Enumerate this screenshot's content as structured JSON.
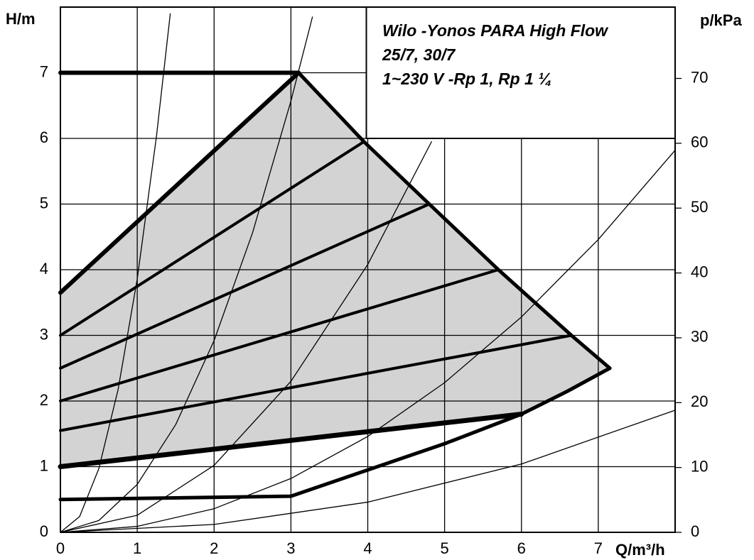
{
  "chart_data": {
    "type": "line",
    "title": [
      "Wilo -Yonos PARA High Flow",
      "25/7, 30/7",
      "1~230 V -Rp 1, Rp 1 ¼"
    ],
    "y_label": "H/m",
    "y2_label": "p/kPa",
    "x_label": "Q/m³/h",
    "xlim": [
      0,
      8
    ],
    "xticks": [
      0,
      1,
      2,
      3,
      4,
      5,
      6,
      7
    ],
    "ylim": [
      0,
      8
    ],
    "yticks": [
      0,
      1,
      2,
      3,
      4,
      5,
      6,
      7
    ],
    "y2lim": [
      0,
      81
    ],
    "y2ticks": [
      0,
      10,
      20,
      30,
      40,
      50,
      60,
      70
    ],
    "grid": true,
    "fill": "#d3d3d3",
    "color": "#000000",
    "series": [
      {
        "role": "max",
        "linewidth": 6,
        "x": [
          0,
          3.1
        ],
        "values": [
          3.65,
          7.0
        ]
      },
      {
        "role": "top",
        "linewidth": 6,
        "x": [
          0,
          3.1
        ],
        "values": [
          7.0,
          7.0
        ]
      },
      {
        "role": "boundary",
        "linewidth": 5,
        "x": [
          3.1,
          3.95,
          4.8,
          5.7,
          6.65,
          7.15
        ],
        "values": [
          7.0,
          5.95,
          5.0,
          4.0,
          3.0,
          2.5
        ]
      },
      {
        "role": "min",
        "linewidth": 5,
        "x": [
          0,
          3,
          4,
          5,
          6,
          6.6,
          7.15
        ],
        "values": [
          0.5,
          0.55,
          0.95,
          1.35,
          1.8,
          2.15,
          2.5
        ]
      },
      {
        "role": "low",
        "linewidth": 7,
        "x": [
          0,
          6
        ],
        "values": [
          1.0,
          1.8
        ]
      },
      {
        "linewidth": 4,
        "x": [
          0,
          3.95
        ],
        "values": [
          3.0,
          5.95
        ]
      },
      {
        "linewidth": 4,
        "x": [
          0,
          4.8
        ],
        "values": [
          2.5,
          5.0
        ]
      },
      {
        "linewidth": 4,
        "x": [
          0,
          5.7
        ],
        "values": [
          2.0,
          4.0
        ]
      },
      {
        "linewidth": 4,
        "x": [
          0,
          6.65
        ],
        "values": [
          1.55,
          3.0
        ]
      },
      {
        "linewidth": 1.3,
        "x": [
          0,
          0.25,
          0.5,
          0.75,
          1,
          1.25,
          1.43
        ],
        "values": [
          0,
          0.24,
          0.97,
          2.17,
          3.86,
          6.03,
          7.9
        ]
      },
      {
        "linewidth": 1.3,
        "x": [
          0,
          0.5,
          1,
          1.5,
          2,
          2.5,
          3,
          3.28
        ],
        "values": [
          0,
          0.18,
          0.73,
          1.64,
          2.92,
          4.56,
          6.57,
          7.85
        ]
      },
      {
        "linewidth": 1.3,
        "x": [
          0,
          1,
          2,
          3,
          4,
          4.83
        ],
        "values": [
          0,
          0.26,
          1.02,
          2.3,
          4.08,
          5.95
        ]
      },
      {
        "linewidth": 1.3,
        "x": [
          0,
          1,
          2,
          3,
          4,
          5,
          6,
          7,
          8
        ],
        "values": [
          0,
          0.09,
          0.36,
          0.82,
          1.46,
          2.28,
          3.28,
          4.46,
          5.82
        ]
      },
      {
        "linewidth": 1.3,
        "x": [
          0,
          2,
          4,
          6,
          8
        ],
        "values": [
          0,
          0.12,
          0.46,
          1.04,
          1.86
        ]
      }
    ]
  }
}
